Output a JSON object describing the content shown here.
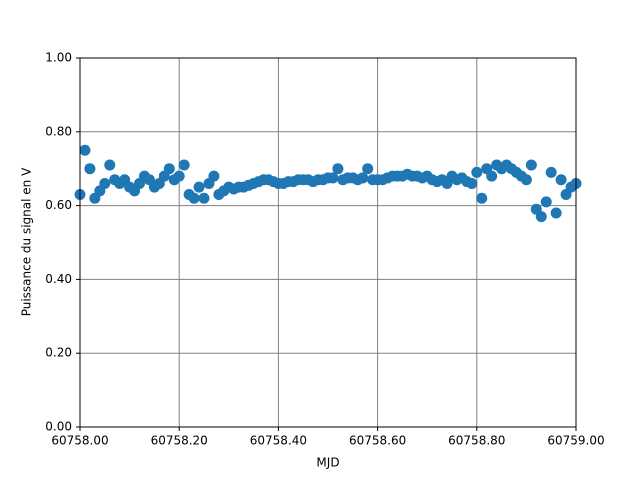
{
  "chart_data": {
    "type": "scatter",
    "xlabel": "MJD",
    "ylabel": "Puissance du signal en V",
    "xlim": [
      60758.0,
      60759.0
    ],
    "xticks": [
      {
        "value": 60758.0,
        "label": "60758.00"
      },
      {
        "value": 60758.2,
        "label": "60758.20"
      },
      {
        "value": 60758.4,
        "label": "60758.40"
      },
      {
        "value": 60758.6,
        "label": "60758.60"
      },
      {
        "value": 60758.8,
        "label": "60758.80"
      },
      {
        "value": 60759.0,
        "label": "60759.00"
      }
    ],
    "ylim": [
      0,
      1
    ],
    "yticks": [
      {
        "value": 0,
        "label": "0.00"
      },
      {
        "value": 0.2,
        "label": "0.20"
      },
      {
        "value": 0.4,
        "label": "0.40"
      },
      {
        "value": 0.6,
        "label": "0.60"
      },
      {
        "value": 0.8,
        "label": "0.80"
      },
      {
        "value": 1,
        "label": "1.00"
      }
    ],
    "grid": true,
    "color": "#1f77b4",
    "x": [
      60758.0,
      60758.01,
      60758.02,
      60758.03,
      60758.04,
      60758.05,
      60758.06,
      60758.07,
      60758.08,
      60758.09,
      60758.1,
      60758.11,
      60758.12,
      60758.13,
      60758.14,
      60758.15,
      60758.16,
      60758.17,
      60758.18,
      60758.19,
      60758.2,
      60758.21,
      60758.22,
      60758.23,
      60758.24,
      60758.25,
      60758.26,
      60758.27,
      60758.28,
      60758.29,
      60758.3,
      60758.31,
      60758.32,
      60758.33,
      60758.34,
      60758.35,
      60758.36,
      60758.37,
      60758.38,
      60758.39,
      60758.4,
      60758.41,
      60758.42,
      60758.43,
      60758.44,
      60758.45,
      60758.46,
      60758.47,
      60758.48,
      60758.49,
      60758.5,
      60758.51,
      60758.52,
      60758.53,
      60758.54,
      60758.55,
      60758.56,
      60758.57,
      60758.58,
      60758.59,
      60758.6,
      60758.61,
      60758.62,
      60758.63,
      60758.64,
      60758.65,
      60758.66,
      60758.67,
      60758.68,
      60758.69,
      60758.7,
      60758.71,
      60758.72,
      60758.73,
      60758.74,
      60758.75,
      60758.76,
      60758.77,
      60758.78,
      60758.79,
      60758.8,
      60758.81,
      60758.82,
      60758.83,
      60758.84,
      60758.85,
      60758.86,
      60758.87,
      60758.88,
      60758.89,
      60758.9,
      60758.91,
      60758.92,
      60758.93,
      60758.94,
      60758.95,
      60758.96,
      60758.97,
      60758.98,
      60758.99,
      60759.0
    ],
    "values": [
      0.63,
      0.75,
      0.7,
      0.62,
      0.64,
      0.66,
      0.71,
      0.67,
      0.66,
      0.67,
      0.65,
      0.64,
      0.66,
      0.68,
      0.67,
      0.65,
      0.66,
      0.68,
      0.7,
      0.67,
      0.68,
      0.71,
      0.63,
      0.62,
      0.65,
      0.62,
      0.66,
      0.68,
      0.63,
      0.64,
      0.65,
      0.645,
      0.65,
      0.65,
      0.655,
      0.66,
      0.665,
      0.67,
      0.67,
      0.665,
      0.66,
      0.66,
      0.665,
      0.665,
      0.67,
      0.67,
      0.67,
      0.665,
      0.67,
      0.67,
      0.675,
      0.675,
      0.7,
      0.67,
      0.675,
      0.675,
      0.67,
      0.675,
      0.7,
      0.67,
      0.67,
      0.67,
      0.675,
      0.68,
      0.68,
      0.68,
      0.685,
      0.68,
      0.68,
      0.675,
      0.68,
      0.67,
      0.665,
      0.67,
      0.66,
      0.68,
      0.67,
      0.675,
      0.665,
      0.66,
      0.69,
      0.62,
      0.7,
      0.68,
      0.71,
      0.7,
      0.71,
      0.7,
      0.69,
      0.68,
      0.67,
      0.71,
      0.59,
      0.57,
      0.61,
      0.69,
      0.58,
      0.67,
      0.63,
      0.65,
      0.66
    ]
  }
}
